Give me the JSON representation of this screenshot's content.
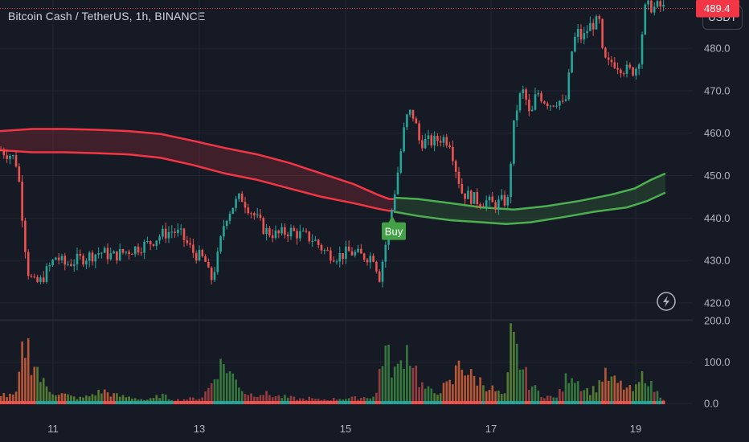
{
  "header": {
    "symbol_title": "Bitcoin Cash / TetherUS, 1h, BINANCE",
    "currency_button": "USDT"
  },
  "colors": {
    "background": "#161a25",
    "grid": "#232632",
    "bull": "#26a69a",
    "bear": "#ef5350",
    "band_bear": "#f23645",
    "band_bull": "#4caf50",
    "last_price": "#f23645",
    "buy_marker": "#43a047"
  },
  "chart_data": [
    {
      "type": "candlestick",
      "title": "",
      "price_axis": {
        "ticks": [
          420.0,
          430.0,
          440.0,
          450.0,
          460.0,
          470.0,
          480.0
        ],
        "tick_labels": [
          "420.0",
          "430.0",
          "440.0",
          "450.0",
          "460.0",
          "470.0",
          "480.0"
        ],
        "ylim": [
          416.0,
          491.4
        ]
      },
      "time_axis": {
        "ticks": [
          "11",
          "13",
          "15",
          "17",
          "19"
        ]
      },
      "last_price": {
        "value": 489.4,
        "label": "489.4"
      },
      "grid": true,
      "price_path": [
        [
          0,
          456
        ],
        [
          6,
          455.5
        ],
        [
          12,
          455
        ],
        [
          18,
          454
        ],
        [
          22,
          452
        ],
        [
          26,
          444
        ],
        [
          30,
          436
        ],
        [
          34,
          428
        ],
        [
          38,
          426
        ],
        [
          42,
          424.5
        ],
        [
          50,
          425
        ],
        [
          60,
          428
        ],
        [
          70,
          431
        ],
        [
          80,
          429
        ],
        [
          95,
          430
        ],
        [
          110,
          431
        ],
        [
          125,
          432
        ],
        [
          140,
          431
        ],
        [
          155,
          432
        ],
        [
          170,
          433
        ],
        [
          185,
          434
        ],
        [
          200,
          436
        ],
        [
          215,
          437
        ],
        [
          225,
          436
        ],
        [
          240,
          432
        ],
        [
          255,
          430
        ],
        [
          262,
          425
        ],
        [
          270,
          430
        ],
        [
          280,
          440
        ],
        [
          290,
          443
        ],
        [
          300,
          445
        ],
        [
          315,
          441
        ],
        [
          330,
          437
        ],
        [
          345,
          436
        ],
        [
          360,
          437
        ],
        [
          375,
          436
        ],
        [
          390,
          435
        ],
        [
          405,
          432
        ],
        [
          420,
          431
        ],
        [
          435,
          432
        ],
        [
          450,
          431
        ],
        [
          465,
          431
        ],
        [
          472,
          426
        ],
        [
          478,
          432
        ],
        [
          484,
          438
        ],
        [
          490,
          445
        ],
        [
          496,
          452
        ],
        [
          502,
          460
        ],
        [
          508,
          465
        ],
        [
          515,
          464
        ],
        [
          522,
          458
        ],
        [
          530,
          458
        ],
        [
          540,
          458
        ],
        [
          550,
          459
        ],
        [
          560,
          458
        ],
        [
          568,
          451
        ],
        [
          575,
          446
        ],
        [
          585,
          445
        ],
        [
          595,
          444
        ],
        [
          605,
          444
        ],
        [
          615,
          443
        ],
        [
          625,
          444
        ],
        [
          632,
          444
        ],
        [
          638,
          460
        ],
        [
          645,
          468
        ],
        [
          652,
          470
        ],
        [
          660,
          463
        ],
        [
          668,
          470
        ],
        [
          676,
          468
        ],
        [
          685,
          467
        ],
        [
          695,
          468
        ],
        [
          702,
          466
        ],
        [
          706,
          470
        ],
        [
          712,
          480
        ],
        [
          718,
          484
        ],
        [
          725,
          482
        ],
        [
          732,
          485
        ],
        [
          740,
          486
        ],
        [
          746,
          486
        ],
        [
          750,
          478
        ],
        [
          756,
          476
        ],
        [
          762,
          477
        ],
        [
          770,
          476
        ],
        [
          778,
          475
        ],
        [
          786,
          474.5
        ],
        [
          794,
          476
        ],
        [
          798,
          482
        ],
        [
          802,
          489
        ],
        [
          808,
          490
        ],
        [
          815,
          489.5
        ],
        [
          820,
          490
        ],
        [
          826,
          489.4
        ]
      ],
      "band_upper": [
        [
          0,
          460.5
        ],
        [
          40,
          461
        ],
        [
          80,
          461
        ],
        [
          120,
          460.8
        ],
        [
          160,
          460.5
        ],
        [
          200,
          459.8
        ],
        [
          240,
          458.2
        ],
        [
          280,
          456.5
        ],
        [
          320,
          455
        ],
        [
          360,
          453
        ],
        [
          400,
          450.5
        ],
        [
          440,
          448
        ],
        [
          470,
          445.5
        ],
        [
          484,
          444.5
        ],
        [
          490,
          444.5
        ]
      ],
      "band_lower": [
        [
          0,
          456
        ],
        [
          40,
          455.5
        ],
        [
          80,
          455.5
        ],
        [
          120,
          455.3
        ],
        [
          160,
          455
        ],
        [
          200,
          454.2
        ],
        [
          240,
          452.5
        ],
        [
          280,
          450.5
        ],
        [
          320,
          449
        ],
        [
          360,
          447
        ],
        [
          400,
          445
        ],
        [
          440,
          443.5
        ],
        [
          470,
          442.2
        ],
        [
          484,
          441.7
        ],
        [
          490,
          441.7
        ]
      ],
      "band_bull_upper": [
        [
          490,
          444.8
        ],
        [
          520,
          444.5
        ],
        [
          560,
          443.5
        ],
        [
          600,
          442.5
        ],
        [
          640,
          442
        ],
        [
          680,
          442.8
        ],
        [
          720,
          444
        ],
        [
          760,
          445.5
        ],
        [
          790,
          447
        ],
        [
          810,
          449
        ],
        [
          828,
          450.5
        ]
      ],
      "band_bull_lower": [
        [
          490,
          441.5
        ],
        [
          520,
          440.5
        ],
        [
          560,
          439.5
        ],
        [
          600,
          439
        ],
        [
          630,
          438.6
        ],
        [
          660,
          439
        ],
        [
          700,
          440.2
        ],
        [
          740,
          441.5
        ],
        [
          780,
          442.5
        ],
        [
          805,
          444
        ],
        [
          828,
          446
        ]
      ],
      "signal": {
        "label": "Buy",
        "x_index": 488,
        "price": 440.5
      }
    },
    {
      "type": "bar",
      "title": "",
      "series_name": "Volume",
      "y_axis": {
        "ticks": [
          0.0,
          100.0,
          200.0
        ],
        "tick_labels": [
          "0.0",
          "100.0",
          "200.0"
        ],
        "ylim": [
          0,
          200
        ]
      },
      "volume_path": [
        [
          0,
          30
        ],
        [
          10,
          20
        ],
        [
          20,
          25
        ],
        [
          30,
          170
        ],
        [
          36,
          155
        ],
        [
          40,
          110
        ],
        [
          44,
          120
        ],
        [
          50,
          70
        ],
        [
          60,
          40
        ],
        [
          70,
          30
        ],
        [
          80,
          25
        ],
        [
          90,
          18
        ],
        [
          100,
          15
        ],
        [
          110,
          20
        ],
        [
          120,
          30
        ],
        [
          130,
          35
        ],
        [
          140,
          25
        ],
        [
          150,
          20
        ],
        [
          160,
          18
        ],
        [
          170,
          15
        ],
        [
          180,
          10
        ],
        [
          190,
          12
        ],
        [
          200,
          25
        ],
        [
          210,
          15
        ],
        [
          220,
          10
        ],
        [
          230,
          12
        ],
        [
          240,
          14
        ],
        [
          250,
          15
        ],
        [
          262,
          50
        ],
        [
          270,
          100
        ],
        [
          280,
          115
        ],
        [
          288,
          80
        ],
        [
          296,
          60
        ],
        [
          305,
          30
        ],
        [
          315,
          25
        ],
        [
          325,
          30
        ],
        [
          335,
          25
        ],
        [
          345,
          20
        ],
        [
          355,
          18
        ],
        [
          365,
          15
        ],
        [
          375,
          12
        ],
        [
          385,
          15
        ],
        [
          395,
          10
        ],
        [
          410,
          12
        ],
        [
          425,
          14
        ],
        [
          440,
          15
        ],
        [
          455,
          18
        ],
        [
          468,
          20
        ],
        [
          474,
          130
        ],
        [
          480,
          150
        ],
        [
          488,
          100
        ],
        [
          496,
          90
        ],
        [
          504,
          160
        ],
        [
          510,
          145
        ],
        [
          516,
          110
        ],
        [
          522,
          60
        ],
        [
          530,
          40
        ],
        [
          540,
          30
        ],
        [
          548,
          40
        ],
        [
          556,
          50
        ],
        [
          564,
          60
        ],
        [
          572,
          135
        ],
        [
          578,
          100
        ],
        [
          584,
          80
        ],
        [
          592,
          70
        ],
        [
          600,
          60
        ],
        [
          610,
          45
        ],
        [
          620,
          30
        ],
        [
          630,
          20
        ],
        [
          636,
          190
        ],
        [
          642,
          150
        ],
        [
          650,
          100
        ],
        [
          658,
          60
        ],
        [
          666,
          40
        ],
        [
          674,
          25
        ],
        [
          682,
          20
        ],
        [
          690,
          15
        ],
        [
          700,
          40
        ],
        [
          706,
          80
        ],
        [
          712,
          90
        ],
        [
          720,
          60
        ],
        [
          728,
          40
        ],
        [
          736,
          35
        ],
        [
          744,
          50
        ],
        [
          750,
          80
        ],
        [
          758,
          70
        ],
        [
          766,
          60
        ],
        [
          774,
          50
        ],
        [
          782,
          40
        ],
        [
          790,
          35
        ],
        [
          798,
          70
        ],
        [
          804,
          90
        ],
        [
          810,
          50
        ],
        [
          818,
          30
        ],
        [
          826,
          15
        ]
      ]
    }
  ]
}
